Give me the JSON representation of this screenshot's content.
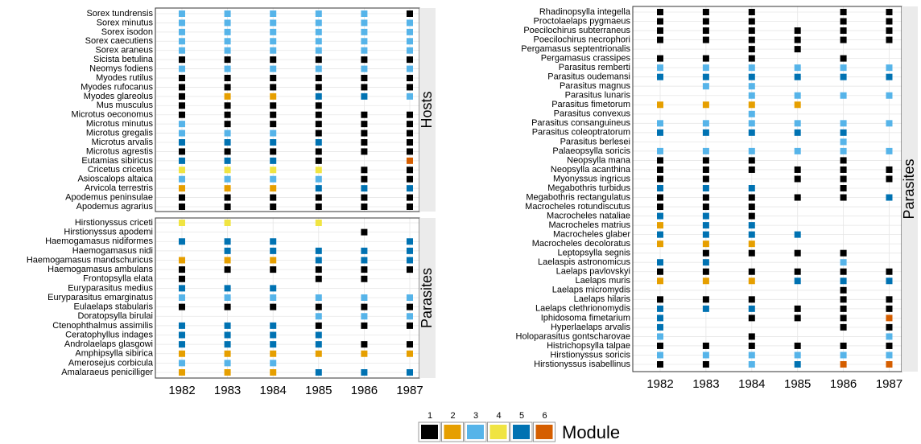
{
  "chart_data": [
    {
      "type": "tile",
      "strip": "Hosts",
      "x": [
        1982,
        1983,
        1984,
        1985,
        1986,
        1987
      ],
      "categories": [
        "Sorex tundrensis",
        "Sorex minutus",
        "Sorex isodon",
        "Sorex caecutiens",
        "Sorex araneus",
        "Sicista betulina",
        "Neomys fodiens",
        "Myodes rutilus",
        "Myodes rufocanus",
        "Myodes glareolus",
        "Mus musculus",
        "Microtus oeconomus",
        "Microtus minutus",
        "Microtus gregalis",
        "Microtus arvalis",
        "Microtus agrestis",
        "Eutamias sibiricus",
        "Cricetus cricetus",
        "Asioscalops altaica",
        "Arvicola terrestris",
        "Apodemus peninsulae",
        "Apodemus agrarius"
      ],
      "values": [
        [
          3,
          3,
          3,
          3,
          3,
          1
        ],
        [
          3,
          3,
          3,
          3,
          3,
          3
        ],
        [
          3,
          3,
          3,
          3,
          3,
          3
        ],
        [
          3,
          3,
          3,
          3,
          3,
          3
        ],
        [
          3,
          3,
          3,
          3,
          3,
          3
        ],
        [
          1,
          1,
          1,
          1,
          1,
          1
        ],
        [
          3,
          3,
          3,
          3,
          3,
          3
        ],
        [
          1,
          1,
          1,
          1,
          1,
          1
        ],
        [
          1,
          1,
          1,
          1,
          1,
          1
        ],
        [
          1,
          2,
          2,
          5,
          5,
          3
        ],
        [
          1,
          1,
          1,
          1,
          null,
          null
        ],
        [
          1,
          1,
          1,
          1,
          1,
          1
        ],
        [
          3,
          1,
          1,
          1,
          1,
          1
        ],
        [
          3,
          3,
          3,
          1,
          1,
          1
        ],
        [
          5,
          5,
          5,
          5,
          1,
          1
        ],
        [
          1,
          1,
          1,
          1,
          1,
          1
        ],
        [
          5,
          5,
          5,
          1,
          null,
          6
        ],
        [
          4,
          4,
          4,
          4,
          1,
          1
        ],
        [
          3,
          3,
          3,
          3,
          1,
          1
        ],
        [
          2,
          2,
          2,
          5,
          5,
          5
        ],
        [
          1,
          1,
          1,
          1,
          1,
          1
        ],
        [
          1,
          1,
          1,
          1,
          1,
          1
        ]
      ]
    },
    {
      "type": "tile",
      "strip": "Parasites",
      "x": [
        1982,
        1983,
        1984,
        1985,
        1986,
        1987
      ],
      "categories": [
        "Hirstionyssus criceti",
        "Hirstionyssus apodemi",
        "Haemogamasus nidiformes",
        "Haemogamasus nidi",
        "Haemogamasus mandschuricus",
        "Haemogamasus ambulans",
        "Frontopsylla elata",
        "Euryparasitus medius",
        "Euryparasitus emarginatus",
        "Eulaelaps stabularis",
        "Doratopsylla birulai",
        "Ctenophthalmus assimilis",
        "Ceratophyllus indages",
        "Androlaelaps glasgowi",
        "Amphipsylla sibirica",
        "Amerosejus corbicula",
        "Amalaraeus penicilliger"
      ],
      "values": [
        [
          4,
          4,
          null,
          4,
          null,
          null
        ],
        [
          null,
          null,
          null,
          null,
          1,
          null
        ],
        [
          5,
          5,
          5,
          null,
          null,
          5
        ],
        [
          null,
          5,
          5,
          5,
          5,
          5
        ],
        [
          2,
          2,
          2,
          5,
          5,
          5
        ],
        [
          1,
          1,
          1,
          1,
          1,
          1
        ],
        [
          1,
          null,
          null,
          1,
          1,
          null
        ],
        [
          5,
          5,
          5,
          null,
          null,
          null
        ],
        [
          3,
          3,
          3,
          3,
          3,
          3
        ],
        [
          1,
          1,
          1,
          1,
          1,
          1
        ],
        [
          null,
          null,
          null,
          3,
          3,
          3
        ],
        [
          5,
          5,
          5,
          1,
          1,
          1
        ],
        [
          5,
          5,
          5,
          5,
          null,
          null
        ],
        [
          5,
          5,
          5,
          5,
          1,
          1
        ],
        [
          2,
          2,
          2,
          2,
          2,
          2
        ],
        [
          3,
          3,
          3,
          null,
          null,
          null
        ],
        [
          2,
          2,
          2,
          5,
          5,
          5
        ]
      ]
    },
    {
      "type": "tile",
      "strip": "Parasites",
      "x": [
        1982,
        1983,
        1984,
        1985,
        1986,
        1987
      ],
      "categories": [
        "Rhadinopsylla integella",
        "Proctolaelaps pygmaeus",
        "Poecilochirus subterraneus",
        "Poecilochirus necrophori",
        "Pergamasus septentrionalis",
        "Pergamasus crassipes",
        "Parasitus remberti",
        "Parasitus oudemansi",
        "Parasitus magnus",
        "Parasitus lunaris",
        "Parasitus fimetorum",
        "Parasitus convexus",
        "Parasitus consanguineus",
        "Parasitus coleoptratorum",
        "Parasitus berlesei",
        "Palaeopsylla soricis",
        "Neopsylla mana",
        "Neopsylla acanthina",
        "Myonyssus ingricus",
        "Megabothris turbidus",
        "Megabothris rectangulatus",
        "Macrocheles rotundiscutus",
        "Macrocheles nataliae",
        "Macrocheles matrius",
        "Macrocheles glaber",
        "Macrocheles decoloratus",
        "Leptopsylla segnis",
        "Laelaspis astronomicus",
        "Laelaps pavlovskyi",
        "Laelaps muris",
        "Laelaps micromydis",
        "Laelaps hilaris",
        "Laelaps clethrionomydis",
        "Iphidosoma fimetarium",
        "Hyperlaelaps arvalis",
        "Holoparasitus gontscharovae",
        "Histrichopsylla talpae",
        "Hirstionyssus soricis",
        "Hirstionyssus isabellinus"
      ],
      "values": [
        [
          1,
          1,
          1,
          null,
          1,
          1
        ],
        [
          1,
          1,
          1,
          null,
          1,
          1
        ],
        [
          1,
          1,
          1,
          1,
          1,
          1
        ],
        [
          1,
          1,
          1,
          1,
          1,
          1
        ],
        [
          null,
          null,
          1,
          1,
          null,
          null
        ],
        [
          1,
          1,
          1,
          null,
          1,
          null
        ],
        [
          3,
          3,
          3,
          3,
          3,
          3
        ],
        [
          5,
          5,
          5,
          5,
          5,
          5
        ],
        [
          null,
          3,
          3,
          null,
          null,
          null
        ],
        [
          null,
          null,
          3,
          3,
          3,
          3
        ],
        [
          2,
          2,
          2,
          2,
          null,
          null
        ],
        [
          null,
          null,
          3,
          null,
          null,
          null
        ],
        [
          3,
          3,
          3,
          3,
          3,
          3
        ],
        [
          5,
          5,
          5,
          5,
          5,
          null
        ],
        [
          null,
          null,
          null,
          null,
          3,
          null
        ],
        [
          3,
          3,
          3,
          3,
          3,
          3
        ],
        [
          1,
          1,
          1,
          null,
          1,
          null
        ],
        [
          1,
          1,
          1,
          1,
          1,
          1
        ],
        [
          1,
          1,
          null,
          1,
          1,
          1
        ],
        [
          5,
          5,
          5,
          null,
          1,
          null
        ],
        [
          1,
          1,
          1,
          1,
          1,
          5
        ],
        [
          1,
          1,
          1,
          null,
          null,
          null
        ],
        [
          5,
          5,
          1,
          null,
          null,
          null
        ],
        [
          2,
          5,
          5,
          null,
          null,
          null
        ],
        [
          5,
          5,
          5,
          5,
          null,
          null
        ],
        [
          2,
          2,
          2,
          null,
          null,
          null
        ],
        [
          null,
          1,
          1,
          1,
          1,
          null
        ],
        [
          5,
          5,
          null,
          null,
          3,
          null
        ],
        [
          1,
          1,
          1,
          1,
          1,
          1
        ],
        [
          2,
          2,
          2,
          5,
          5,
          5
        ],
        [
          null,
          null,
          null,
          null,
          1,
          null
        ],
        [
          1,
          1,
          1,
          null,
          1,
          1
        ],
        [
          5,
          5,
          5,
          1,
          1,
          1
        ],
        [
          5,
          null,
          1,
          1,
          1,
          6
        ],
        [
          5,
          null,
          null,
          null,
          1,
          1
        ],
        [
          3,
          null,
          1,
          null,
          null,
          3
        ],
        [
          1,
          1,
          1,
          1,
          1,
          1
        ],
        [
          3,
          3,
          3,
          3,
          3,
          3
        ],
        [
          1,
          1,
          3,
          5,
          6,
          6
        ]
      ]
    }
  ],
  "legend": {
    "title": "Module",
    "levels": [
      1,
      2,
      3,
      4,
      5,
      6
    ],
    "colors": [
      "#000000",
      "#E69F00",
      "#56B4E9",
      "#F0E442",
      "#0072B2",
      "#D55E00"
    ]
  }
}
